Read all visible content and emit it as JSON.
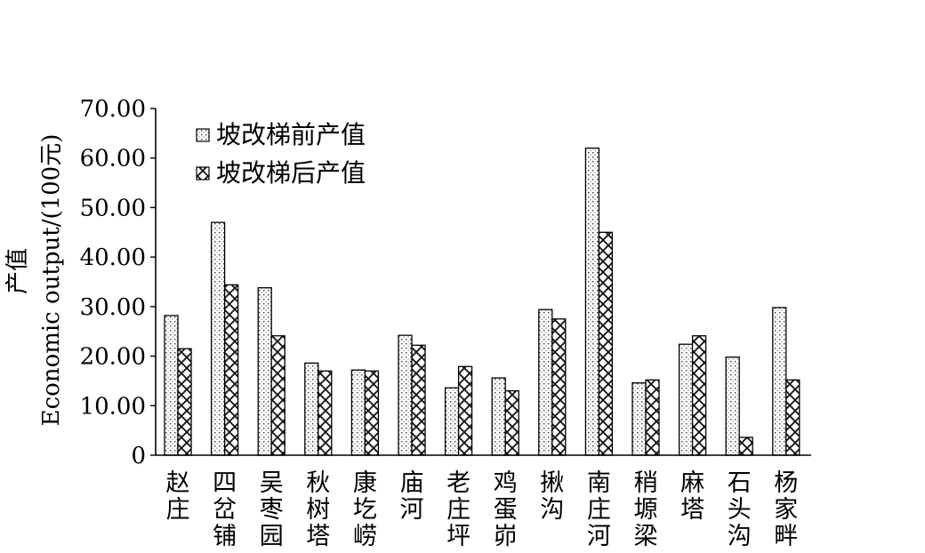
{
  "chart_data": {
    "type": "bar",
    "categories": [
      "赵庄",
      "四岔铺",
      "吴枣园",
      "秋树塔",
      "康圪崂",
      "庙河",
      "老庄坪",
      "鸡蛋峁",
      "揪沟",
      "南庄河",
      "稍塬梁",
      "麻塔",
      "石头沟",
      "杨家畔"
    ],
    "series": [
      {
        "name": "坡改梯前产值",
        "values": [
          28.2,
          47.0,
          33.8,
          18.6,
          17.2,
          24.2,
          13.6,
          15.6,
          29.4,
          62.0,
          14.6,
          22.4,
          19.8,
          29.8
        ]
      },
      {
        "name": "坡改梯后产值",
        "values": [
          21.5,
          34.4,
          24.1,
          17.0,
          17.0,
          22.2,
          17.9,
          13.0,
          27.5,
          45.0,
          15.2,
          24.1,
          3.6,
          15.2
        ]
      }
    ],
    "ylabel_cn": "产值",
    "ylabel_en": "Economic output/(100元)",
    "ylim": [
      0,
      70
    ],
    "yticks": [
      "0",
      "10.00",
      "20.00",
      "30.00",
      "40.00",
      "50.00",
      "60.00",
      "70.00"
    ],
    "ytick_values": [
      0,
      10,
      20,
      30,
      40,
      50,
      60,
      70
    ],
    "legend_position": "top-left",
    "grid": false
  }
}
